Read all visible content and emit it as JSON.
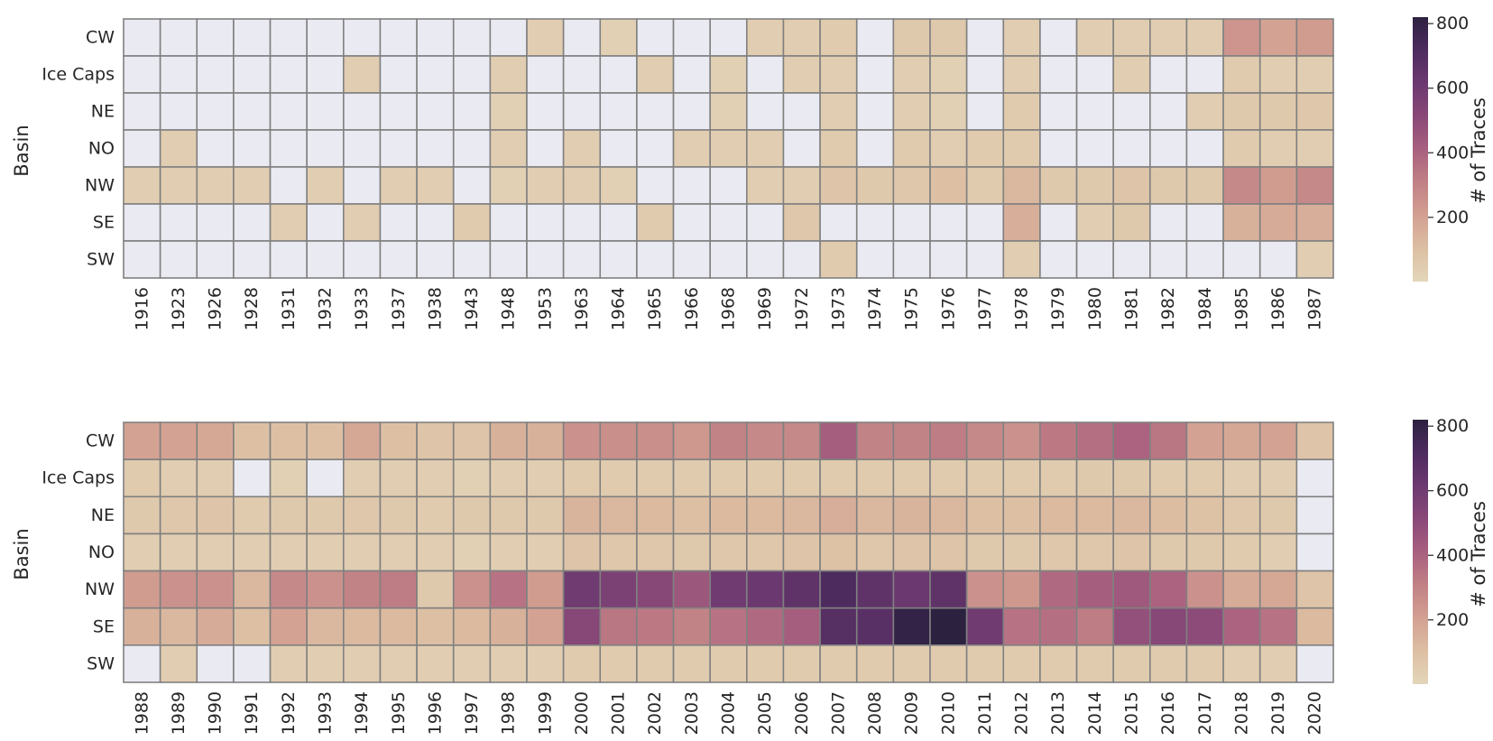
{
  "chart_data": [
    {
      "type": "heatmap",
      "ylabel": "Basin",
      "colorbar_label": "# of Traces",
      "colorbar_ticks": [
        200,
        400,
        600,
        800
      ],
      "value_range": [
        1,
        820
      ],
      "empty_color": "#EAEAF2",
      "rows": [
        "CW",
        "Ice Caps",
        "NE",
        "NO",
        "NW",
        "SE",
        "SW"
      ],
      "columns": [
        "1916",
        "1923",
        "1926",
        "1928",
        "1931",
        "1932",
        "1933",
        "1937",
        "1938",
        "1943",
        "1948",
        "1953",
        "1963",
        "1964",
        "1965",
        "1966",
        "1968",
        "1969",
        "1972",
        "1973",
        "1974",
        "1975",
        "1976",
        "1977",
        "1978",
        "1979",
        "1980",
        "1981",
        "1982",
        "1984",
        "1985",
        "1986",
        "1987"
      ],
      "values": [
        [
          null,
          null,
          null,
          null,
          null,
          null,
          null,
          null,
          null,
          null,
          null,
          40,
          null,
          30,
          null,
          null,
          null,
          40,
          40,
          50,
          null,
          60,
          60,
          null,
          40,
          null,
          40,
          40,
          40,
          40,
          240,
          200,
          220
        ],
        [
          null,
          null,
          null,
          null,
          null,
          null,
          40,
          null,
          null,
          null,
          40,
          null,
          null,
          null,
          40,
          null,
          30,
          null,
          40,
          40,
          null,
          40,
          30,
          null,
          40,
          null,
          null,
          40,
          null,
          null,
          50,
          40,
          40
        ],
        [
          null,
          null,
          null,
          null,
          null,
          null,
          null,
          null,
          null,
          null,
          30,
          null,
          null,
          null,
          null,
          null,
          30,
          null,
          null,
          40,
          null,
          40,
          30,
          null,
          50,
          null,
          null,
          null,
          null,
          40,
          60,
          60,
          70
        ],
        [
          null,
          40,
          null,
          null,
          null,
          null,
          null,
          null,
          null,
          null,
          40,
          null,
          40,
          null,
          null,
          40,
          40,
          40,
          null,
          50,
          null,
          50,
          40,
          50,
          50,
          null,
          null,
          null,
          null,
          null,
          50,
          40,
          40
        ],
        [
          40,
          40,
          40,
          40,
          null,
          40,
          null,
          40,
          40,
          null,
          30,
          40,
          40,
          30,
          null,
          null,
          null,
          40,
          40,
          80,
          60,
          70,
          100,
          50,
          130,
          60,
          60,
          80,
          60,
          60,
          280,
          220,
          280
        ],
        [
          null,
          null,
          null,
          null,
          40,
          null,
          40,
          null,
          null,
          50,
          null,
          null,
          null,
          null,
          50,
          null,
          null,
          null,
          70,
          null,
          null,
          null,
          null,
          null,
          160,
          null,
          40,
          60,
          null,
          null,
          150,
          170,
          160
        ],
        [
          null,
          null,
          null,
          null,
          null,
          null,
          null,
          null,
          null,
          null,
          null,
          null,
          null,
          null,
          null,
          null,
          null,
          null,
          null,
          50,
          null,
          null,
          null,
          null,
          40,
          null,
          null,
          null,
          null,
          null,
          null,
          null,
          40
        ]
      ]
    },
    {
      "type": "heatmap",
      "ylabel": "Basin",
      "colorbar_label": "# of Traces",
      "colorbar_ticks": [
        200,
        400,
        600,
        800
      ],
      "value_range": [
        1,
        820
      ],
      "empty_color": "#EAEAF2",
      "rows": [
        "CW",
        "Ice Caps",
        "NE",
        "NO",
        "NW",
        "SE",
        "SW"
      ],
      "columns": [
        "1988",
        "1989",
        "1990",
        "1991",
        "1992",
        "1993",
        "1994",
        "1995",
        "1996",
        "1997",
        "1998",
        "1999",
        "2000",
        "2001",
        "2002",
        "2003",
        "2004",
        "2005",
        "2006",
        "2007",
        "2008",
        "2009",
        "2010",
        "2011",
        "2012",
        "2013",
        "2014",
        "2015",
        "2016",
        "2017",
        "2018",
        "2019",
        "2020"
      ],
      "values": [
        [
          200,
          200,
          180,
          100,
          100,
          100,
          180,
          100,
          80,
          80,
          150,
          150,
          250,
          260,
          260,
          230,
          300,
          280,
          280,
          420,
          300,
          300,
          320,
          280,
          250,
          330,
          360,
          400,
          340,
          200,
          180,
          200,
          80
        ],
        [
          50,
          40,
          40,
          null,
          30,
          null,
          40,
          40,
          40,
          30,
          40,
          40,
          50,
          50,
          50,
          50,
          50,
          50,
          50,
          50,
          50,
          50,
          50,
          50,
          50,
          50,
          60,
          60,
          50,
          50,
          40,
          40,
          null
        ],
        [
          60,
          70,
          80,
          50,
          60,
          60,
          70,
          60,
          50,
          60,
          60,
          60,
          140,
          130,
          120,
          100,
          120,
          120,
          130,
          160,
          130,
          140,
          130,
          100,
          100,
          120,
          120,
          130,
          110,
          90,
          70,
          60,
          null
        ],
        [
          40,
          40,
          40,
          40,
          40,
          40,
          40,
          40,
          40,
          30,
          40,
          40,
          80,
          70,
          70,
          60,
          70,
          70,
          80,
          90,
          70,
          80,
          80,
          60,
          60,
          70,
          70,
          80,
          60,
          60,
          50,
          40,
          null
        ],
        [
          220,
          250,
          250,
          130,
          280,
          250,
          300,
          320,
          60,
          250,
          350,
          220,
          600,
          560,
          520,
          450,
          600,
          620,
          660,
          720,
          660,
          620,
          660,
          250,
          230,
          380,
          420,
          440,
          400,
          250,
          170,
          180,
          80
        ],
        [
          150,
          130,
          170,
          100,
          200,
          130,
          120,
          120,
          100,
          120,
          150,
          200,
          520,
          340,
          330,
          300,
          350,
          380,
          420,
          690,
          680,
          800,
          820,
          600,
          350,
          360,
          320,
          480,
          520,
          500,
          400,
          350,
          120
        ],
        [
          null,
          40,
          null,
          null,
          40,
          40,
          40,
          40,
          40,
          40,
          40,
          40,
          50,
          50,
          50,
          50,
          50,
          50,
          50,
          50,
          50,
          50,
          50,
          50,
          50,
          50,
          50,
          50,
          50,
          50,
          40,
          40,
          null
        ]
      ]
    }
  ]
}
